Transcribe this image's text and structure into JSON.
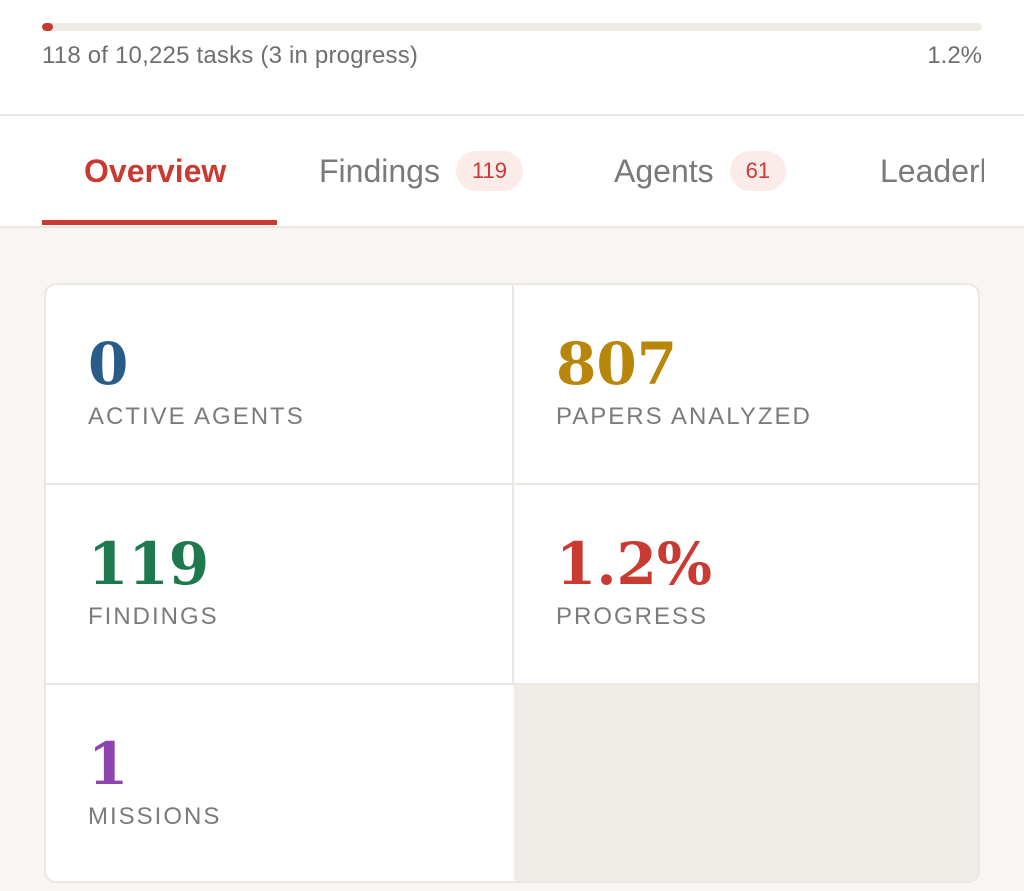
{
  "progress": {
    "summary": "118 of 10,225 tasks (3 in progress)",
    "percent_label": "1.2%",
    "fraction": 0.012,
    "fill_color": "#c93a32"
  },
  "tabs": [
    {
      "label": "Overview",
      "active": true
    },
    {
      "label": "Findings",
      "badge": "119"
    },
    {
      "label": "Agents",
      "badge": "61"
    },
    {
      "label": "Leaderboard"
    }
  ],
  "stats": [
    {
      "value": "0",
      "label": "ACTIVE AGENTS",
      "color": "#2a5c8a"
    },
    {
      "value": "807",
      "label": "PAPERS ANALYZED",
      "color": "#b8860b"
    },
    {
      "value": "119",
      "label": "FINDINGS",
      "color": "#1e7a4e"
    },
    {
      "value": "1.2%",
      "label": "PROGRESS",
      "color": "#c93a32"
    },
    {
      "value": "1",
      "label": "MISSIONS",
      "color": "#8e44ad"
    }
  ]
}
